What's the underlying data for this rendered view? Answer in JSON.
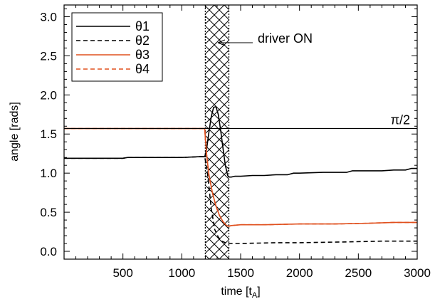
{
  "chart_data": {
    "type": "line",
    "xlabel_main": "time [t",
    "xlabel_sub": "A",
    "xlabel_end": "]",
    "ylabel": "angle [rads]",
    "xlim": [
      0,
      3000
    ],
    "ylim": [
      -0.1,
      3.15
    ],
    "xticks": [
      500,
      1000,
      1500,
      2000,
      2500,
      3000
    ],
    "yticks": [
      0.0,
      0.5,
      1.0,
      1.5,
      2.0,
      2.5,
      3.0
    ],
    "ytick_labels": [
      "0.0",
      "0.5",
      "1.0",
      "1.5",
      "2.0",
      "2.5",
      "3.0"
    ],
    "hline": {
      "y": 1.5708,
      "label": "π/2"
    },
    "driver_band": {
      "x0": 1200,
      "x1": 1400
    },
    "annotation": {
      "text": "driver ON",
      "x": 1400,
      "y": 2.95
    },
    "legend_position": "top-left",
    "series": [
      {
        "name": "θ1",
        "color": "#000000",
        "dash": "solid",
        "x": [
          0,
          500,
          540,
          1000,
          1150,
          1195,
          1210,
          1230,
          1250,
          1270,
          1290,
          1310,
          1330,
          1350,
          1370,
          1390,
          1400,
          1420,
          1450,
          1500,
          1600,
          1700,
          1800,
          1900,
          1950,
          2000,
          2200,
          2400,
          2450,
          2700,
          2800,
          2900,
          2950,
          3000
        ],
        "y": [
          1.19,
          1.19,
          1.2,
          1.2,
          1.21,
          1.21,
          1.3,
          1.52,
          1.72,
          1.84,
          1.85,
          1.75,
          1.55,
          1.32,
          1.1,
          0.97,
          0.95,
          0.95,
          0.96,
          0.96,
          0.97,
          0.97,
          0.98,
          0.98,
          1.0,
          1.0,
          1.01,
          1.01,
          1.03,
          1.03,
          1.04,
          1.04,
          1.06,
          1.06
        ]
      },
      {
        "name": "θ2",
        "color": "#000000",
        "dash": "dashed",
        "x": [
          0,
          500,
          540,
          1000,
          1150,
          1195,
          1220,
          1250,
          1280,
          1310,
          1340,
          1370,
          1400,
          1420,
          1500,
          1800,
          2000,
          2400,
          2700,
          3000
        ],
        "y": [
          1.19,
          1.19,
          1.2,
          1.2,
          1.21,
          1.21,
          0.98,
          0.55,
          0.28,
          0.18,
          0.13,
          0.11,
          0.1,
          0.1,
          0.1,
          0.11,
          0.11,
          0.12,
          0.13,
          0.13
        ]
      },
      {
        "name": "θ3",
        "color": "#e0501e",
        "dash": "solid",
        "x": [
          0,
          1195,
          1200,
          1210,
          1230,
          1260,
          1290,
          1320,
          1350,
          1380,
          1400,
          1420,
          1500,
          1700,
          2000,
          2300,
          2600,
          2800,
          3000
        ],
        "y": [
          1.57,
          1.57,
          1.45,
          1.25,
          0.98,
          0.75,
          0.58,
          0.46,
          0.38,
          0.33,
          0.32,
          0.33,
          0.34,
          0.34,
          0.35,
          0.35,
          0.36,
          0.37,
          0.37
        ]
      },
      {
        "name": "θ4",
        "color": "#e0501e",
        "dash": "dashed",
        "x": [
          0,
          1195,
          1200,
          1210,
          1230,
          1260,
          1290,
          1320,
          1350,
          1380,
          1400,
          1420,
          1500,
          1700,
          2000,
          2300,
          2600,
          2800,
          3000
        ],
        "y": [
          1.57,
          1.57,
          1.45,
          1.25,
          0.98,
          0.75,
          0.58,
          0.46,
          0.38,
          0.33,
          0.32,
          0.33,
          0.34,
          0.34,
          0.35,
          0.35,
          0.36,
          0.37,
          0.37
        ]
      }
    ]
  }
}
